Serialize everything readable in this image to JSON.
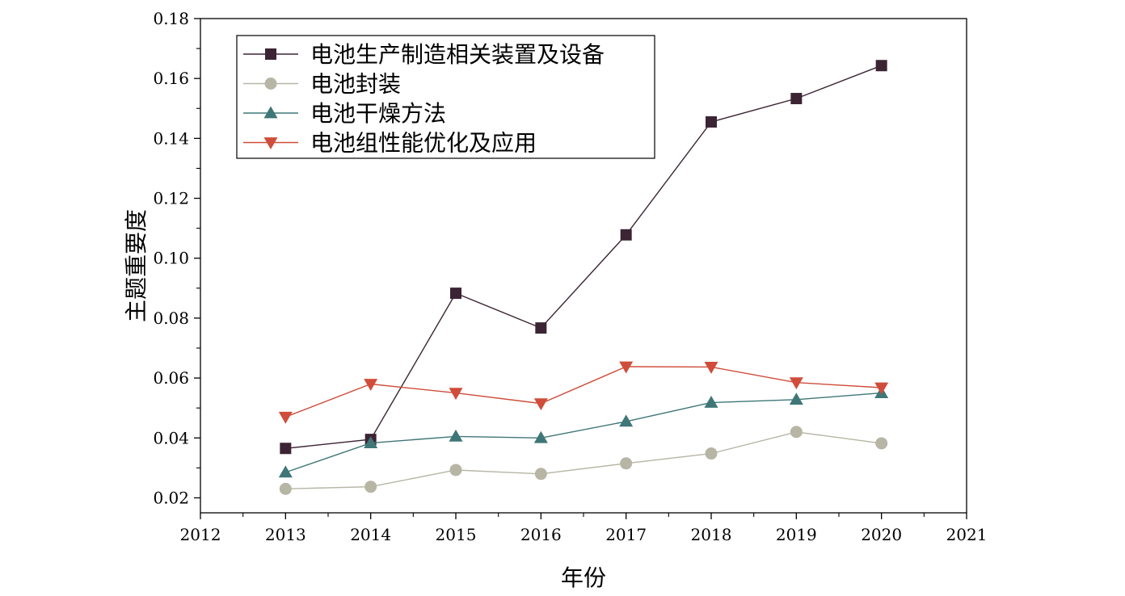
{
  "chart_data": {
    "type": "line",
    "xlabel": "年份",
    "ylabel": "主题重要度",
    "xlim": [
      2012,
      2021
    ],
    "ylim": [
      0.015,
      0.18
    ],
    "x_ticks": [
      2012,
      2013,
      2014,
      2015,
      2016,
      2017,
      2018,
      2019,
      2020,
      2021
    ],
    "y_ticks": [
      0.02,
      0.04,
      0.06,
      0.08,
      0.1,
      0.12,
      0.14,
      0.16,
      0.18
    ],
    "x_tick_labels": [
      "2012",
      "2013",
      "2014",
      "2015",
      "2016",
      "2017",
      "2018",
      "2019",
      "2020",
      "2021"
    ],
    "y_tick_labels": [
      "0.02",
      "0.04",
      "0.06",
      "0.08",
      "0.10",
      "0.12",
      "0.14",
      "0.16",
      "0.18"
    ],
    "x": [
      2013,
      2014,
      2015,
      2016,
      2017,
      2018,
      2019,
      2020
    ],
    "legend_position": "top-left",
    "grid": false,
    "series": [
      {
        "name": "电池生产制造相关装置及设备",
        "marker": "square",
        "color": "#3b2434",
        "values": [
          0.0365,
          0.0395,
          0.0883,
          0.0767,
          0.1078,
          0.1455,
          0.1533,
          0.1643
        ]
      },
      {
        "name": "电池封装",
        "marker": "circle",
        "color": "#b7b5a4",
        "values": [
          0.023,
          0.0237,
          0.0293,
          0.028,
          0.0315,
          0.0348,
          0.042,
          0.0382
        ]
      },
      {
        "name": "电池干燥方法",
        "marker": "triangle-up",
        "color": "#3f7677",
        "values": [
          0.0285,
          0.0383,
          0.0405,
          0.04,
          0.0455,
          0.0518,
          0.0528,
          0.055
        ]
      },
      {
        "name": "电池组性能优化及应用",
        "marker": "triangle-down",
        "color": "#cf4d3a",
        "values": [
          0.047,
          0.058,
          0.055,
          0.0515,
          0.0638,
          0.0637,
          0.0585,
          0.0568
        ]
      }
    ]
  }
}
